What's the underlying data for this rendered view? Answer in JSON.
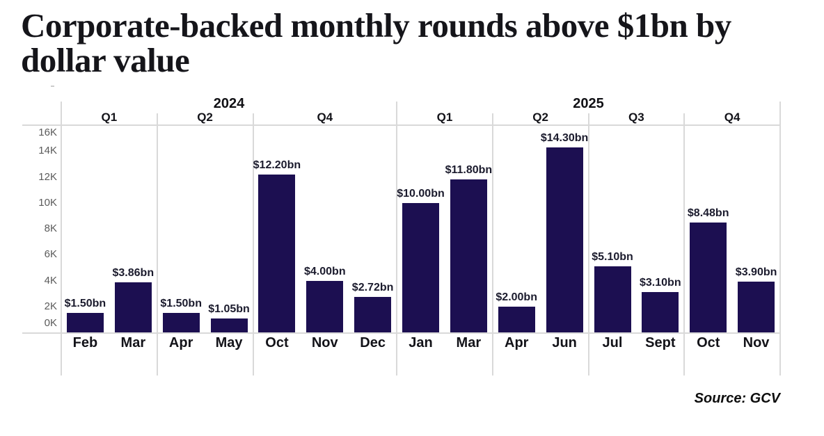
{
  "title_lines": [
    "Corporate-backed monthly rounds above $1bn by",
    "dollar value"
  ],
  "source": "Source: GCV",
  "chart_data": {
    "type": "bar",
    "title": "Corporate-backed monthly rounds above $1bn by dollar value",
    "value_unit": "$m (labels shown in $bn)",
    "ylim": [
      0,
      16000
    ],
    "y_tick_labels": [
      "0K",
      "2K",
      "4K",
      "6K",
      "8K",
      "10K",
      "12K",
      "14K",
      "16K"
    ],
    "legend": "none",
    "grid": "light gray quarter separators, top border and baseline only",
    "bar_color": "#1c0f51",
    "years": [
      {
        "label": "2024",
        "quarters": [
          {
            "label": "Q1",
            "bars": [
              {
                "month": "Feb",
                "value": 1500,
                "label": "$1.50bn"
              },
              {
                "month": "Mar",
                "value": 3860,
                "label": "$3.86bn"
              }
            ]
          },
          {
            "label": "Q2",
            "bars": [
              {
                "month": "Apr",
                "value": 1500,
                "label": "$1.50bn"
              },
              {
                "month": "May",
                "value": 1050,
                "label": "$1.05bn"
              }
            ]
          },
          {
            "label": "Q4",
            "bars": [
              {
                "month": "Oct",
                "value": 12200,
                "label": "$12.20bn"
              },
              {
                "month": "Nov",
                "value": 4000,
                "label": "$4.00bn"
              },
              {
                "month": "Dec",
                "value": 2720,
                "label": "$2.72bn"
              }
            ]
          }
        ]
      },
      {
        "label": "2025",
        "quarters": [
          {
            "label": "Q1",
            "bars": [
              {
                "month": "Jan",
                "value": 10000,
                "label": "$10.00bn"
              },
              {
                "month": "Mar",
                "value": 11800,
                "label": "$11.80bn"
              }
            ]
          },
          {
            "label": "Q2",
            "bars": [
              {
                "month": "Apr",
                "value": 2000,
                "label": "$2.00bn"
              },
              {
                "month": "Jun",
                "value": 14300,
                "label": "$14.30bn"
              }
            ]
          },
          {
            "label": "Q3",
            "bars": [
              {
                "month": "Jul",
                "value": 5100,
                "label": "$5.10bn"
              },
              {
                "month": "Sept",
                "value": 3100,
                "label": "$3.10bn"
              }
            ]
          },
          {
            "label": "Q4",
            "bars": [
              {
                "month": "Oct",
                "value": 8480,
                "label": "$8.48bn"
              },
              {
                "month": "Nov",
                "value": 3900,
                "label": "$3.90bn"
              }
            ]
          }
        ]
      }
    ]
  }
}
